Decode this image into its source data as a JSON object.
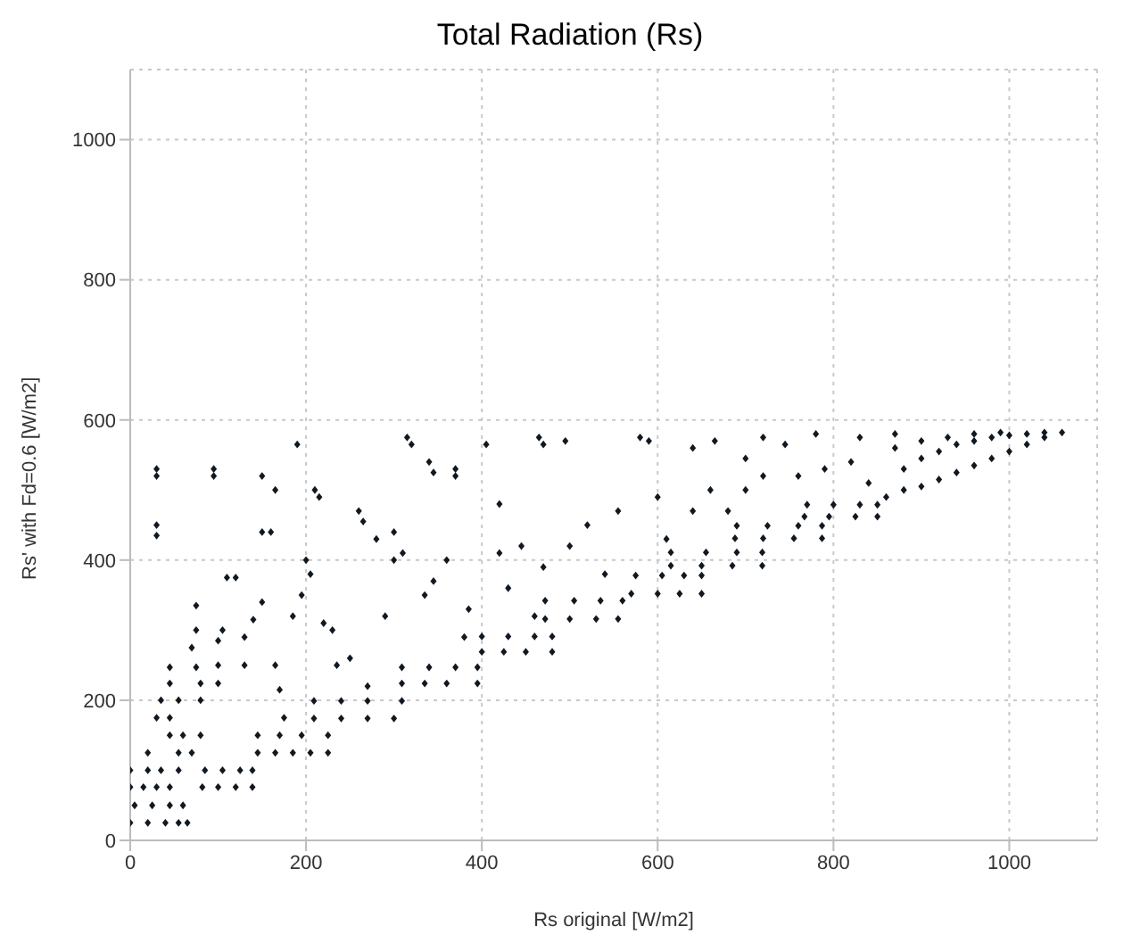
{
  "chart_data": {
    "type": "scatter",
    "title": "Total Radiation (Rs)",
    "xlabel": "Rs original [W/m2]",
    "ylabel": "Rs' with Fd=0.6 [W/m2]",
    "xlim": [
      0,
      1100
    ],
    "ylim": [
      0,
      1100
    ],
    "xticks": [
      0,
      200,
      400,
      600,
      800,
      1000
    ],
    "yticks": [
      0,
      200,
      400,
      600,
      800,
      1000
    ],
    "grid": true,
    "marker": "diamond",
    "series": [
      {
        "color": "#101820",
        "x": [
          0,
          20,
          40,
          55,
          65,
          5,
          25,
          45,
          60,
          0,
          15,
          30,
          45,
          0,
          20,
          35,
          55,
          20,
          55,
          70,
          45,
          60,
          80,
          30,
          45,
          35,
          55,
          80,
          45,
          80,
          100,
          45,
          75,
          82,
          100,
          120,
          139,
          85,
          105,
          125,
          139,
          145,
          165,
          185,
          205,
          225,
          145,
          170,
          195,
          225,
          209,
          240,
          270,
          300,
          209,
          240,
          270,
          309,
          309,
          335,
          360,
          395,
          309,
          340,
          370,
          395,
          400,
          425,
          450,
          480,
          400,
          430,
          460,
          480,
          472,
          500,
          530,
          555,
          472,
          505,
          535,
          560,
          570,
          600,
          625,
          650,
          575,
          605,
          630,
          650,
          615,
          650,
          685,
          719,
          615,
          655,
          690,
          719,
          688,
          720,
          755,
          787,
          690,
          725,
          760,
          787,
          767,
          795,
          825,
          850,
          770,
          800,
          830,
          850,
          860,
          880,
          900,
          920,
          940,
          960,
          980,
          1000,
          1020,
          1040,
          1060,
          880,
          900,
          920,
          940,
          960,
          980,
          1000,
          1020,
          1040,
          870,
          900,
          930,
          960,
          990,
          70,
          75,
          75,
          100,
          100,
          105,
          110,
          120,
          130,
          130,
          140,
          150,
          150,
          160,
          165,
          170,
          175,
          185,
          195,
          200,
          205,
          220,
          230,
          235,
          250,
          270,
          290,
          300,
          310,
          335,
          345,
          360,
          380,
          385,
          420,
          430,
          445,
          460,
          470,
          500,
          520,
          540,
          555,
          600,
          610,
          640,
          660,
          680,
          700,
          720,
          760,
          790,
          820,
          840,
          30,
          30,
          30,
          30,
          95,
          95,
          150,
          165,
          190,
          210,
          215,
          260,
          265,
          280,
          300,
          315,
          320,
          340,
          345,
          370,
          370,
          405,
          420,
          465,
          470,
          495,
          580,
          590,
          640,
          665,
          700,
          720,
          745,
          780,
          830,
          870
        ],
        "values": [
          25,
          25,
          25,
          25,
          25,
          50,
          50,
          50,
          50,
          76,
          76,
          76,
          76,
          100,
          100,
          100,
          100,
          125,
          125,
          125,
          150,
          150,
          150,
          175,
          175,
          200,
          200,
          200,
          224,
          224,
          224,
          247,
          247,
          76,
          76,
          76,
          76,
          100,
          100,
          100,
          100,
          125,
          125,
          125,
          125,
          125,
          150,
          150,
          150,
          150,
          174,
          174,
          174,
          174,
          199,
          199,
          199,
          199,
          224,
          224,
          224,
          224,
          247,
          247,
          247,
          247,
          269,
          269,
          269,
          269,
          291,
          291,
          291,
          291,
          316,
          316,
          316,
          316,
          342,
          342,
          342,
          342,
          352,
          352,
          352,
          352,
          378,
          378,
          378,
          378,
          392,
          392,
          392,
          392,
          411,
          411,
          411,
          411,
          431,
          431,
          431,
          431,
          449,
          449,
          449,
          449,
          462,
          462,
          462,
          462,
          479,
          479,
          479,
          479,
          490,
          500,
          505,
          515,
          525,
          535,
          545,
          555,
          565,
          575,
          582,
          530,
          545,
          555,
          565,
          570,
          575,
          578,
          580,
          582,
          560,
          570,
          575,
          580,
          582,
          275,
          300,
          335,
          250,
          285,
          300,
          375,
          375,
          250,
          290,
          315,
          340,
          440,
          440,
          250,
          215,
          175,
          320,
          350,
          400,
          380,
          310,
          300,
          250,
          260,
          220,
          320,
          400,
          410,
          350,
          370,
          400,
          290,
          330,
          410,
          360,
          420,
          320,
          390,
          420,
          450,
          380,
          470,
          490,
          430,
          470,
          500,
          470,
          500,
          520,
          520,
          530,
          540,
          510,
          530,
          520,
          450,
          435,
          530,
          520,
          520,
          500,
          565,
          500,
          490,
          470,
          455,
          430,
          440,
          575,
          565,
          540,
          525,
          530,
          520,
          565,
          480,
          575,
          565,
          570,
          575,
          570,
          560,
          570,
          545,
          575,
          565,
          580,
          575,
          580
        ]
      }
    ]
  }
}
